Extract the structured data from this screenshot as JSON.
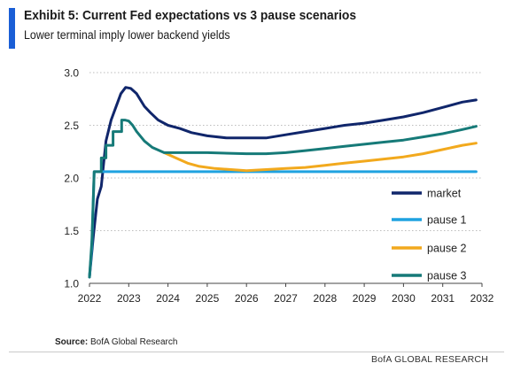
{
  "header": {
    "title": "Exhibit 5: Current Fed expectations vs 3 pause scenarios",
    "subtitle": "Lower terminal imply lower backend yields"
  },
  "footer": {
    "source_label": "Source:",
    "source_text": "BofA Global Research",
    "brand": "BofA GLOBAL RESEARCH"
  },
  "colors": {
    "market": "#10266b",
    "pause1": "#1fa2e0",
    "pause2": "#f2a91d",
    "pause3": "#167a78",
    "accent": "#1a5ed6"
  },
  "chart_data": {
    "type": "line",
    "title": "Exhibit 5: Current Fed expectations vs 3 pause scenarios",
    "subtitle": "Lower terminal imply lower backend yields",
    "xlim": [
      2022,
      2032
    ],
    "ylim": [
      1.0,
      3.0
    ],
    "x_ticks": [
      "2022",
      "2023",
      "2024",
      "2025",
      "2026",
      "2027",
      "2028",
      "2029",
      "2030",
      "2031",
      "2032"
    ],
    "y_ticks": [
      "1.0",
      "1.5",
      "2.0",
      "2.5",
      "3.0"
    ],
    "grid": "horizontal-dotted",
    "legend_position": "bottom-right",
    "series": [
      {
        "name": "market",
        "color": "#10266b",
        "points": [
          [
            2022,
            1.06
          ],
          [
            2022.1,
            1.45
          ],
          [
            2022.2,
            1.8
          ],
          [
            2022.3,
            1.92
          ],
          [
            2022.42,
            2.35
          ],
          [
            2022.55,
            2.55
          ],
          [
            2022.65,
            2.65
          ],
          [
            2022.8,
            2.8
          ],
          [
            2022.92,
            2.86
          ],
          [
            2023.05,
            2.85
          ],
          [
            2023.2,
            2.8
          ],
          [
            2023.4,
            2.68
          ],
          [
            2023.55,
            2.62
          ],
          [
            2023.75,
            2.55
          ],
          [
            2024,
            2.5
          ],
          [
            2024.3,
            2.47
          ],
          [
            2024.6,
            2.43
          ],
          [
            2025,
            2.4
          ],
          [
            2025.5,
            2.38
          ],
          [
            2026,
            2.38
          ],
          [
            2026.5,
            2.38
          ],
          [
            2027,
            2.41
          ],
          [
            2027.5,
            2.44
          ],
          [
            2028,
            2.47
          ],
          [
            2028.5,
            2.5
          ],
          [
            2029,
            2.52
          ],
          [
            2029.5,
            2.55
          ],
          [
            2030,
            2.58
          ],
          [
            2030.5,
            2.62
          ],
          [
            2031,
            2.67
          ],
          [
            2031.5,
            2.72
          ],
          [
            2031.85,
            2.74
          ]
        ]
      },
      {
        "name": "pause 1",
        "color": "#1fa2e0",
        "points": [
          [
            2022,
            1.06
          ],
          [
            2022.06,
            1.35
          ],
          [
            2022.12,
            2.06
          ],
          [
            2022.2,
            2.06
          ],
          [
            2031.85,
            2.06
          ]
        ]
      },
      {
        "name": "pause 2",
        "color": "#f2a91d",
        "points": [
          [
            2023.9,
            2.24
          ],
          [
            2024.2,
            2.19
          ],
          [
            2024.5,
            2.14
          ],
          [
            2024.8,
            2.11
          ],
          [
            2025.2,
            2.09
          ],
          [
            2025.6,
            2.08
          ],
          [
            2026,
            2.07
          ],
          [
            2026.5,
            2.08
          ],
          [
            2027,
            2.09
          ],
          [
            2027.5,
            2.1
          ],
          [
            2028,
            2.12
          ],
          [
            2028.5,
            2.14
          ],
          [
            2029,
            2.16
          ],
          [
            2029.5,
            2.18
          ],
          [
            2030,
            2.2
          ],
          [
            2030.5,
            2.23
          ],
          [
            2031,
            2.27
          ],
          [
            2031.5,
            2.31
          ],
          [
            2031.85,
            2.33
          ]
        ]
      },
      {
        "name": "pause 3",
        "color": "#167a78",
        "points": [
          [
            2022,
            1.06
          ],
          [
            2022.06,
            1.4
          ],
          [
            2022.12,
            2.06
          ],
          [
            2022.3,
            2.06
          ],
          [
            2022.3,
            2.19
          ],
          [
            2022.42,
            2.19
          ],
          [
            2022.42,
            2.31
          ],
          [
            2022.6,
            2.31
          ],
          [
            2022.6,
            2.44
          ],
          [
            2022.82,
            2.44
          ],
          [
            2022.82,
            2.55
          ],
          [
            2022.9,
            2.55
          ],
          [
            2023,
            2.54
          ],
          [
            2023.1,
            2.5
          ],
          [
            2023.2,
            2.44
          ],
          [
            2023.4,
            2.35
          ],
          [
            2023.6,
            2.29
          ],
          [
            2023.9,
            2.24
          ],
          [
            2024,
            2.24
          ],
          [
            2025,
            2.24
          ],
          [
            2026,
            2.23
          ],
          [
            2026.5,
            2.23
          ],
          [
            2027,
            2.24
          ],
          [
            2027.5,
            2.26
          ],
          [
            2028,
            2.28
          ],
          [
            2028.5,
            2.3
          ],
          [
            2029,
            2.32
          ],
          [
            2029.5,
            2.34
          ],
          [
            2030,
            2.36
          ],
          [
            2030.5,
            2.39
          ],
          [
            2031,
            2.42
          ],
          [
            2031.5,
            2.46
          ],
          [
            2031.85,
            2.49
          ]
        ]
      }
    ]
  }
}
